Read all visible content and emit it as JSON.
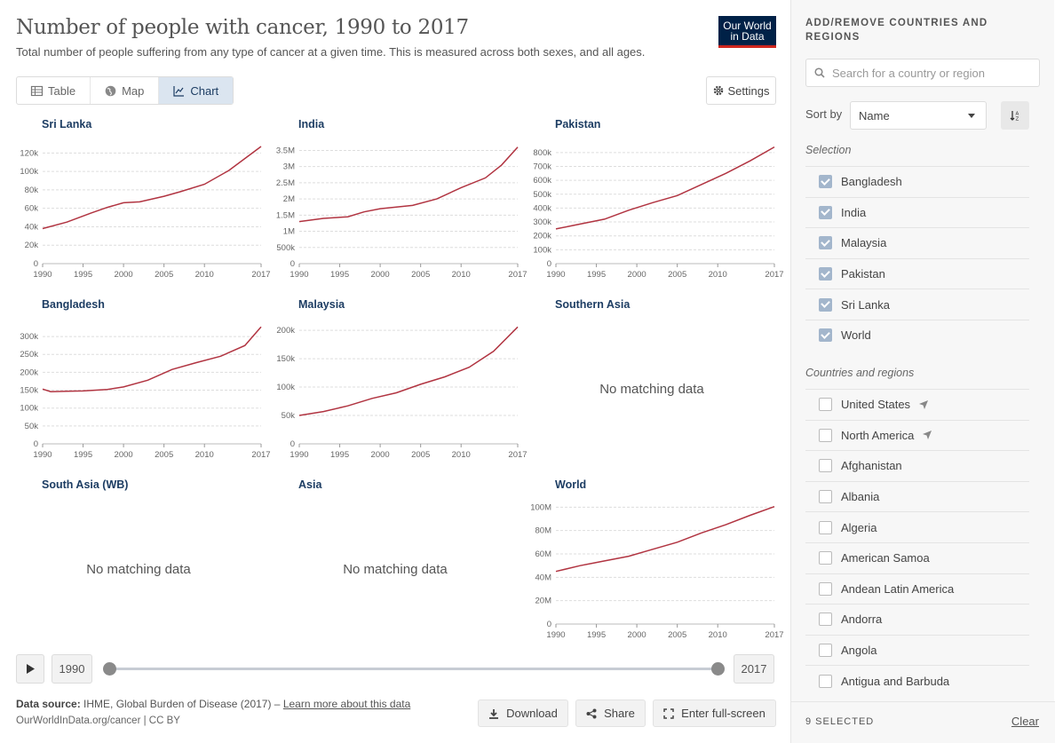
{
  "header": {
    "title": "Number of people with cancer, 1990 to 2017",
    "subtitle": "Total number of people suffering from any type of cancer at a given time. This is measured across both sexes, and all ages.",
    "logo_line1": "Our World",
    "logo_line2": "in Data"
  },
  "tabs": [
    {
      "label": "Table",
      "icon": "table-icon",
      "active": false
    },
    {
      "label": "Map",
      "icon": "globe-icon",
      "active": false
    },
    {
      "label": "Chart",
      "icon": "line-chart-icon",
      "active": true
    }
  ],
  "settings_label": "Settings",
  "no_data_text": "No matching data",
  "chart_data": [
    {
      "type": "line",
      "title": "Sri Lanka",
      "x": [
        1990,
        1993,
        1996,
        1998,
        2000,
        2002,
        2005,
        2007,
        2010,
        2013,
        2017
      ],
      "values": [
        38000,
        45000,
        55000,
        61000,
        66000,
        67000,
        73000,
        78000,
        86000,
        101000,
        127000
      ],
      "yticks": [
        0,
        20000,
        40000,
        60000,
        80000,
        100000,
        120000
      ],
      "yticklabels": [
        "0",
        "20k",
        "40k",
        "60k",
        "80k",
        "100k",
        "120k"
      ],
      "ylim": [
        0,
        128000
      ]
    },
    {
      "type": "line",
      "title": "India",
      "x": [
        1990,
        1993,
        1996,
        1998,
        2000,
        2004,
        2007,
        2010,
        2013,
        2015,
        2017
      ],
      "values": [
        1300000,
        1400000,
        1450000,
        1600000,
        1700000,
        1800000,
        2000000,
        2350000,
        2650000,
        3050000,
        3600000
      ],
      "yticks": [
        0,
        500000,
        1000000,
        1500000,
        2000000,
        2500000,
        3000000,
        3500000
      ],
      "yticklabels": [
        "0",
        "500k",
        "1M",
        "1.5M",
        "2M",
        "2.5M",
        "3M",
        "3.5M"
      ],
      "ylim": [
        0,
        3650000
      ]
    },
    {
      "type": "line",
      "title": "Pakistan",
      "x": [
        1990,
        1993,
        1996,
        1999,
        2002,
        2005,
        2008,
        2011,
        2014,
        2017
      ],
      "values": [
        250000,
        285000,
        320000,
        385000,
        440000,
        490000,
        570000,
        650000,
        740000,
        840000
      ],
      "yticks": [
        0,
        100000,
        200000,
        300000,
        400000,
        500000,
        600000,
        700000,
        800000
      ],
      "yticklabels": [
        "0",
        "100k",
        "200k",
        "300k",
        "400k",
        "500k",
        "600k",
        "700k",
        "800k"
      ],
      "ylim": [
        0,
        850000
      ]
    },
    {
      "type": "line",
      "title": "Bangladesh",
      "x": [
        1990,
        1991,
        1993,
        1995,
        1998,
        2000,
        2003,
        2006,
        2009,
        2012,
        2015,
        2017
      ],
      "values": [
        153000,
        146000,
        147000,
        148000,
        152000,
        159000,
        178000,
        208000,
        227000,
        245000,
        275000,
        327000
      ],
      "yticks": [
        0,
        50000,
        100000,
        150000,
        200000,
        250000,
        300000
      ],
      "yticklabels": [
        "0",
        "50k",
        "100k",
        "150k",
        "200k",
        "250k",
        "300k"
      ],
      "ylim": [
        0,
        330000
      ]
    },
    {
      "type": "line",
      "title": "Malaysia",
      "x": [
        1990,
        1993,
        1996,
        1999,
        2002,
        2005,
        2008,
        2011,
        2014,
        2017
      ],
      "values": [
        50000,
        57000,
        67000,
        80000,
        90000,
        105000,
        118000,
        135000,
        163000,
        206000
      ],
      "yticks": [
        0,
        50000,
        100000,
        150000,
        200000
      ],
      "yticklabels": [
        "0",
        "50k",
        "100k",
        "150k",
        "200k"
      ],
      "ylim": [
        0,
        208000
      ]
    },
    {
      "type": "line",
      "title": "Southern Asia",
      "nodata": true
    },
    {
      "type": "line",
      "title": "South Asia (WB)",
      "nodata": true
    },
    {
      "type": "line",
      "title": "Asia",
      "nodata": true
    },
    {
      "type": "line",
      "title": "World",
      "x": [
        1990,
        1993,
        1996,
        1999,
        2002,
        2005,
        2008,
        2011,
        2014,
        2017
      ],
      "values": [
        45000000,
        50000000,
        54000000,
        58000000,
        64000000,
        70000000,
        78000000,
        85000000,
        93000000,
        100500000
      ],
      "yticks": [
        0,
        20000000,
        40000000,
        60000000,
        80000000,
        100000000
      ],
      "yticklabels": [
        "0",
        "20M",
        "40M",
        "60M",
        "80M",
        "100M"
      ],
      "ylim": [
        0,
        101000000
      ]
    }
  ],
  "xticks": [
    1990,
    1995,
    2000,
    2005,
    2010,
    2017
  ],
  "xlim": [
    1990,
    2017
  ],
  "timeline": {
    "start": "1990",
    "end": "2017"
  },
  "source": {
    "label": "Data source:",
    "text": " IHME, Global Burden of Disease (2017) – ",
    "link": "Learn more about this data",
    "url_line": "OurWorldInData.org/cancer | CC BY"
  },
  "actions": {
    "download": "Download",
    "share": "Share",
    "fullscreen": "Enter full-screen"
  },
  "colors": {
    "line": "#b13441",
    "accent": "#1d3d63"
  },
  "sidebar": {
    "header": "ADD/REMOVE COUNTRIES AND REGIONS",
    "search_placeholder": "Search for a country or region",
    "sort_label": "Sort by",
    "sort_value": "Name",
    "selection_label": "Selection",
    "selected": [
      "Bangladesh",
      "India",
      "Malaysia",
      "Pakistan",
      "Sri Lanka",
      "World"
    ],
    "regions_label": "Countries and regions",
    "regions": [
      {
        "name": "United States",
        "located": true
      },
      {
        "name": "North America",
        "located": true
      },
      {
        "name": "Afghanistan",
        "located": false
      },
      {
        "name": "Albania",
        "located": false
      },
      {
        "name": "Algeria",
        "located": false
      },
      {
        "name": "American Samoa",
        "located": false
      },
      {
        "name": "Andean Latin America",
        "located": false
      },
      {
        "name": "Andorra",
        "located": false
      },
      {
        "name": "Angola",
        "located": false
      },
      {
        "name": "Antigua and Barbuda",
        "located": false
      }
    ],
    "selected_count": "9 SELECTED",
    "clear_label": "Clear"
  }
}
